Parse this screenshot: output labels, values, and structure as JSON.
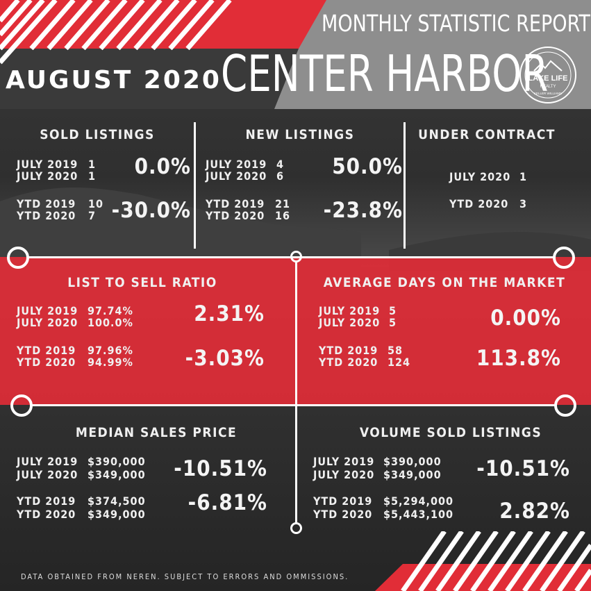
{
  "header": {
    "report_title": "MONTHLY STATISTIC REPORT",
    "city": "CENTER HARBOR",
    "date": "AUGUST 2020",
    "logo": {
      "line1": "LAKE LIFE",
      "line2": "REALTY",
      "line3": "KELLER WILLIAMS"
    }
  },
  "colors": {
    "accent_red": "#e12d37",
    "header_gray": "#8e8e8e",
    "background_dark": "#2f2f2f"
  },
  "sold_listings": {
    "title": "SOLD LISTINGS",
    "month_row1": {
      "label": "JULY 2019",
      "value": "1"
    },
    "month_row2": {
      "label": "JULY 2020",
      "value": "1"
    },
    "month_change": "0.0%",
    "ytd_row1": {
      "label": "YTD 2019",
      "value": "10"
    },
    "ytd_row2": {
      "label": "YTD 2020",
      "value": "7"
    },
    "ytd_change": "-30.0%"
  },
  "new_listings": {
    "title": "NEW LISTINGS",
    "month_row1": {
      "label": "JULY 2019",
      "value": "4"
    },
    "month_row2": {
      "label": "JULY 2020",
      "value": "6"
    },
    "month_change": "50.0%",
    "ytd_row1": {
      "label": "YTD 2019",
      "value": "21"
    },
    "ytd_row2": {
      "label": "YTD 2020",
      "value": "16"
    },
    "ytd_change": "-23.8%"
  },
  "under_contract": {
    "title": "UNDER CONTRACT",
    "row1": {
      "label": "JULY 2020",
      "value": "1"
    },
    "row2": {
      "label": "YTD 2020",
      "value": "3"
    }
  },
  "list_to_sell": {
    "title": "LIST TO SELL RATIO",
    "month_row1": {
      "label": "JULY 2019",
      "value": "97.74%"
    },
    "month_row2": {
      "label": "JULY 2020",
      "value": "100.0%"
    },
    "month_change": "2.31%",
    "ytd_row1": {
      "label": "YTD 2019",
      "value": "97.96%"
    },
    "ytd_row2": {
      "label": "YTD 2020",
      "value": "94.99%"
    },
    "ytd_change": "-3.03%"
  },
  "days_on_market": {
    "title": "AVERAGE DAYS ON THE MARKET",
    "month_row1": {
      "label": "JULY 2019",
      "value": "5"
    },
    "month_row2": {
      "label": "JULY 2020",
      "value": "5"
    },
    "month_change": "0.00%",
    "ytd_row1": {
      "label": "YTD 2019",
      "value": "58"
    },
    "ytd_row2": {
      "label": "YTD 2020",
      "value": "124"
    },
    "ytd_change": "113.8%"
  },
  "median_price": {
    "title": "MEDIAN SALES PRICE",
    "month_row1": {
      "label": "JULY 2019",
      "value": "$390,000"
    },
    "month_row2": {
      "label": "JULY 2020",
      "value": "$349,000"
    },
    "month_change": "-10.51%",
    "ytd_row1": {
      "label": "YTD 2019",
      "value": "$374,500"
    },
    "ytd_row2": {
      "label": "YTD 2020",
      "value": "$349,000"
    },
    "ytd_change": "-6.81%"
  },
  "volume_sold": {
    "title": "VOLUME SOLD LISTINGS",
    "month_row1": {
      "label": "JULY 2019",
      "value": "$390,000"
    },
    "month_row2": {
      "label": "JULY 2020",
      "value": "$349,000"
    },
    "month_change": "-10.51%",
    "ytd_row1": {
      "label": "YTD 2019",
      "value": "$5,294,000"
    },
    "ytd_row2": {
      "label": "YTD 2020",
      "value": "$5,443,100"
    },
    "ytd_change": "2.82%"
  },
  "footer": {
    "disclaimer": "DATA OBTAINED FROM NEREN. SUBJECT TO ERRORS AND OMMISSIONS."
  }
}
